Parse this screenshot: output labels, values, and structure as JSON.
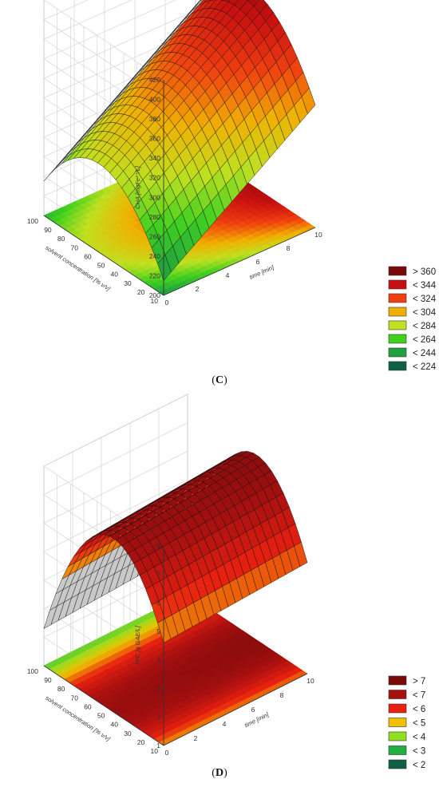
{
  "panels": [
    {
      "caption_prefix": "(",
      "caption_letter": "C",
      "caption_suffix": ")"
    },
    {
      "caption_prefix": "(",
      "caption_letter": "D",
      "caption_suffix": ")"
    }
  ],
  "chart_data": [
    {
      "type": "surface",
      "xlabel": "time [min]",
      "ylabel": "solvent concentration [% v/v]",
      "zlabel": "CHA [mgFe²⁺/L]",
      "xticks": [
        0,
        2,
        4,
        6,
        8,
        10
      ],
      "yticks": [
        10,
        20,
        30,
        40,
        50,
        60,
        70,
        80,
        90,
        100
      ],
      "zticks": [
        200,
        220,
        240,
        260,
        280,
        300,
        320,
        340,
        360,
        380,
        400,
        420
      ],
      "xlim": [
        0,
        10
      ],
      "ylim": [
        10,
        100
      ],
      "zlim": [
        200,
        420
      ],
      "legend": {
        "labels": [
          "> 360",
          "< 344",
          "< 324",
          "< 304",
          "< 284",
          "< 264",
          "< 244",
          "< 224"
        ],
        "colors": [
          "#7a0a0a",
          "#c81010",
          "#f04010",
          "#f0b000",
          "#c0e020",
          "#40d020",
          "#20a040",
          "#106048"
        ]
      },
      "surface": {
        "z_at_y10_x0": 215,
        "z_at_y10_x10": 325,
        "z_at_y55_x0": 290,
        "z_at_y55_x10": 400,
        "z_at_y100_x0": 235,
        "z_at_y100_x10": 345
      }
    },
    {
      "type": "surface",
      "xlabel": "time [min]",
      "ylabel": "solvent concentration [% v/v]",
      "zlabel": "TPC [g GAE/L]",
      "xticks": [
        0,
        2,
        4,
        6,
        8,
        10
      ],
      "yticks": [
        10,
        20,
        30,
        40,
        50,
        60,
        70,
        80,
        90,
        100
      ],
      "zticks": [
        1,
        2,
        3,
        4,
        5,
        6,
        7,
        8
      ],
      "xlim": [
        0,
        10
      ],
      "ylim": [
        10,
        100
      ],
      "zlim": [
        1,
        8
      ],
      "legend": {
        "labels": [
          "> 7",
          "< 7",
          "< 6",
          "< 5",
          "< 4",
          "< 3",
          "< 2"
        ],
        "colors": [
          "#7a0a0a",
          "#a81010",
          "#e82010",
          "#f0c000",
          "#90e020",
          "#20b040",
          "#106048"
        ]
      },
      "surface": {
        "z_at_y10_x0": 4.6,
        "z_at_y10_x10": 4.9,
        "z_at_y55_x0": 7.0,
        "z_at_y55_x10": 7.4,
        "z_at_y100_x0": 2.3,
        "z_at_y100_x10": 2.6
      }
    }
  ]
}
